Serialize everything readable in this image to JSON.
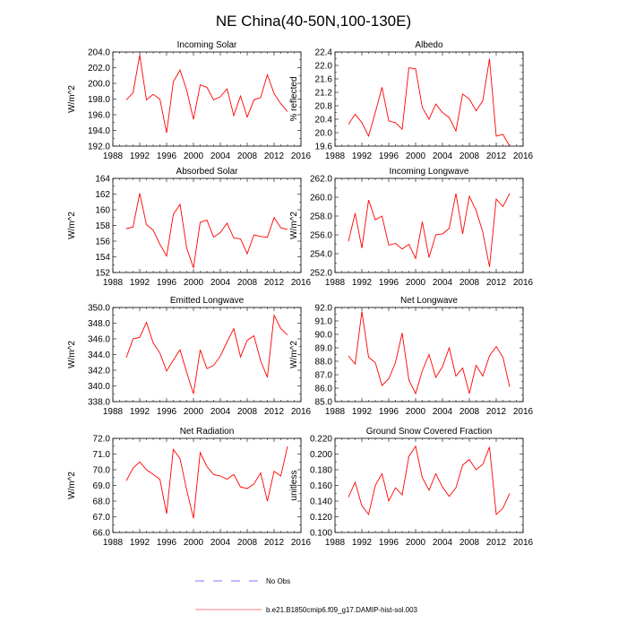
{
  "page_title": "NE China(40-50N,100-130E)",
  "legend": {
    "no_obs_label": "No Obs",
    "model_label": "b.e21.B1850cmip6.f09_g17.DAMIP-hist-sol.003"
  },
  "colors": {
    "model_line": "#ff0000",
    "obs_line": "#4b4bff",
    "axis": "#000000"
  },
  "chart_data": [
    {
      "type": "line",
      "title": "Incoming Solar",
      "ylabel": "W/m^2",
      "xlim": [
        1988,
        2016
      ],
      "ylim": [
        192.0,
        204.0
      ],
      "x_ticks": [
        1988,
        1992,
        1996,
        2000,
        2004,
        2008,
        2012,
        2016
      ],
      "y_ticks": [
        "192.0",
        "194.0",
        "196.0",
        "198.0",
        "200.0",
        "202.0",
        "204.0"
      ],
      "series": [
        {
          "x": [
            1990,
            1991,
            1992,
            1993,
            1994,
            1995,
            1996,
            1997,
            1998,
            1999,
            2000,
            2001,
            2002,
            2003,
            2004,
            2005,
            2006,
            2007,
            2008,
            2009,
            2010,
            2011,
            2012,
            2013,
            2014
          ],
          "values": [
            197.9,
            198.8,
            203.6,
            197.9,
            198.6,
            198.0,
            193.7,
            200.2,
            201.7,
            199.1,
            195.4,
            199.8,
            199.5,
            197.9,
            198.3,
            199.3,
            195.9,
            198.4,
            195.7,
            197.9,
            198.2,
            201.1,
            198.7,
            197.4,
            196.4
          ]
        }
      ]
    },
    {
      "type": "line",
      "title": "Albedo",
      "ylabel": "% reflected",
      "xlim": [
        1988,
        2016
      ],
      "ylim": [
        19.6,
        22.4
      ],
      "x_ticks": [
        1988,
        1992,
        1996,
        2000,
        2004,
        2008,
        2012,
        2016
      ],
      "y_ticks": [
        "19.6",
        "20.0",
        "20.4",
        "20.8",
        "21.2",
        "21.6",
        "22.0",
        "22.4"
      ],
      "series": [
        {
          "x": [
            1990,
            1991,
            1992,
            1993,
            1994,
            1995,
            1996,
            1997,
            1998,
            1999,
            2000,
            2001,
            2002,
            2003,
            2004,
            2005,
            2006,
            2007,
            2008,
            2009,
            2010,
            2011,
            2012,
            2013,
            2014
          ],
          "values": [
            20.25,
            20.55,
            20.3,
            19.9,
            20.6,
            21.35,
            20.35,
            20.3,
            20.1,
            21.93,
            21.9,
            20.75,
            20.4,
            20.85,
            20.6,
            20.45,
            20.05,
            21.15,
            21.0,
            20.65,
            20.95,
            22.2,
            19.9,
            19.95,
            19.6
          ]
        }
      ]
    },
    {
      "type": "line",
      "title": "Absorbed Solar",
      "ylabel": "W/m^2",
      "xlim": [
        1988,
        2016
      ],
      "ylim": [
        152,
        164
      ],
      "x_ticks": [
        1988,
        1992,
        1996,
        2000,
        2004,
        2008,
        2012,
        2016
      ],
      "y_ticks": [
        "152",
        "154",
        "156",
        "158",
        "160",
        "162",
        "164"
      ],
      "series": [
        {
          "x": [
            1990,
            1991,
            1992,
            1993,
            1994,
            1995,
            1996,
            1997,
            1998,
            1999,
            2000,
            2001,
            2002,
            2003,
            2004,
            2005,
            2006,
            2007,
            2008,
            2009,
            2010,
            2011,
            2012,
            2013,
            2014
          ],
          "values": [
            157.6,
            157.8,
            162.1,
            158.1,
            157.4,
            155.6,
            154.1,
            159.4,
            160.7,
            155.1,
            152.6,
            158.4,
            158.7,
            156.5,
            157.1,
            158.3,
            156.4,
            156.3,
            154.4,
            156.8,
            156.6,
            156.5,
            159.0,
            157.7,
            157.5
          ]
        }
      ]
    },
    {
      "type": "line",
      "title": "Incoming Longwave",
      "ylabel": "W/m^2",
      "xlim": [
        1988,
        2016
      ],
      "ylim": [
        252.0,
        262.0
      ],
      "x_ticks": [
        1988,
        1992,
        1996,
        2000,
        2004,
        2008,
        2012,
        2016
      ],
      "y_ticks": [
        "252.0",
        "254.0",
        "256.0",
        "258.0",
        "260.0",
        "262.0"
      ],
      "series": [
        {
          "x": [
            1990,
            1991,
            1992,
            1993,
            1994,
            1995,
            1996,
            1997,
            1998,
            1999,
            2000,
            2001,
            2002,
            2003,
            2004,
            2005,
            2006,
            2007,
            2008,
            2009,
            2010,
            2011,
            2012,
            2013,
            2014
          ],
          "values": [
            255.3,
            258.3,
            254.6,
            259.7,
            257.6,
            258.0,
            254.9,
            255.1,
            254.5,
            255.0,
            253.5,
            257.4,
            253.6,
            256.0,
            256.1,
            256.7,
            260.4,
            256.1,
            260.1,
            258.6,
            256.3,
            252.6,
            259.8,
            259.0,
            260.4
          ]
        }
      ]
    },
    {
      "type": "line",
      "title": "Emitted Longwave",
      "ylabel": "W/m^2",
      "xlim": [
        1988,
        2016
      ],
      "ylim": [
        338.0,
        350.0
      ],
      "x_ticks": [
        1988,
        1992,
        1996,
        2000,
        2004,
        2008,
        2012,
        2016
      ],
      "y_ticks": [
        "338.0",
        "340.0",
        "342.0",
        "344.0",
        "346.0",
        "348.0",
        "350.0"
      ],
      "series": [
        {
          "x": [
            1990,
            1991,
            1992,
            1993,
            1994,
            1995,
            1996,
            1997,
            1998,
            1999,
            2000,
            2001,
            2002,
            2003,
            2004,
            2005,
            2006,
            2007,
            2008,
            2009,
            2010,
            2011,
            2012,
            2013,
            2014
          ],
          "values": [
            343.6,
            346.0,
            346.2,
            348.1,
            345.5,
            344.2,
            341.9,
            343.3,
            344.6,
            341.7,
            339.0,
            344.6,
            342.2,
            342.6,
            343.8,
            345.6,
            347.3,
            343.7,
            345.8,
            346.4,
            343.2,
            341.1,
            349.0,
            347.3,
            346.5
          ]
        }
      ]
    },
    {
      "type": "line",
      "title": "Net Longwave",
      "ylabel": "W/m^2",
      "xlim": [
        1988,
        2016
      ],
      "ylim": [
        85.0,
        92.0
      ],
      "x_ticks": [
        1988,
        1992,
        1996,
        2000,
        2004,
        2008,
        2012,
        2016
      ],
      "y_ticks": [
        "85.0",
        "86.0",
        "87.0",
        "88.0",
        "89.0",
        "90.0",
        "91.0",
        "92.0"
      ],
      "series": [
        {
          "x": [
            1990,
            1991,
            1992,
            1993,
            1994,
            1995,
            1996,
            1997,
            1998,
            1999,
            2000,
            2001,
            2002,
            2003,
            2004,
            2005,
            2006,
            2007,
            2008,
            2009,
            2010,
            2011,
            2012,
            2013,
            2014
          ],
          "values": [
            88.4,
            87.8,
            91.7,
            88.3,
            87.9,
            86.2,
            86.7,
            87.9,
            90.1,
            86.6,
            85.6,
            87.3,
            88.5,
            86.8,
            87.6,
            89.0,
            86.9,
            87.5,
            85.6,
            87.7,
            86.9,
            88.4,
            89.1,
            88.3,
            86.1
          ]
        }
      ]
    },
    {
      "type": "line",
      "title": "Net Radiation",
      "ylabel": "W/m^2",
      "xlim": [
        1988,
        2016
      ],
      "ylim": [
        66.0,
        72.0
      ],
      "x_ticks": [
        1988,
        1992,
        1996,
        2000,
        2004,
        2008,
        2012,
        2016
      ],
      "y_ticks": [
        "66.0",
        "67.0",
        "68.0",
        "69.0",
        "70.0",
        "71.0",
        "72.0"
      ],
      "series": [
        {
          "x": [
            1990,
            1991,
            1992,
            1993,
            1994,
            1995,
            1996,
            1997,
            1998,
            1999,
            2000,
            2001,
            2002,
            2003,
            2004,
            2005,
            2006,
            2007,
            2008,
            2009,
            2010,
            2011,
            2012,
            2013,
            2014
          ],
          "values": [
            69.3,
            70.1,
            70.5,
            70.0,
            69.7,
            69.4,
            67.2,
            71.3,
            70.7,
            68.7,
            66.9,
            71.1,
            70.2,
            69.7,
            69.6,
            69.4,
            69.7,
            68.9,
            68.8,
            69.1,
            69.8,
            68.0,
            69.9,
            69.6,
            71.5
          ]
        }
      ]
    },
    {
      "type": "line",
      "title": "Ground Snow Covered Fraction",
      "ylabel": "unitless",
      "xlim": [
        1988,
        2016
      ],
      "ylim": [
        0.1,
        0.22
      ],
      "x_ticks": [
        1988,
        1992,
        1996,
        2000,
        2004,
        2008,
        2012,
        2016
      ],
      "y_ticks": [
        "0.100",
        "0.120",
        "0.140",
        "0.160",
        "0.180",
        "0.200",
        "0.220"
      ],
      "series": [
        {
          "x": [
            1990,
            1991,
            1992,
            1993,
            1994,
            1995,
            1996,
            1997,
            1998,
            1999,
            2000,
            2001,
            2002,
            2003,
            2004,
            2005,
            2006,
            2007,
            2008,
            2009,
            2010,
            2011,
            2012,
            2013,
            2014
          ],
          "values": [
            0.145,
            0.164,
            0.134,
            0.123,
            0.16,
            0.175,
            0.14,
            0.157,
            0.148,
            0.197,
            0.21,
            0.17,
            0.154,
            0.175,
            0.158,
            0.146,
            0.157,
            0.186,
            0.193,
            0.18,
            0.187,
            0.209,
            0.123,
            0.131,
            0.15
          ]
        }
      ]
    }
  ]
}
